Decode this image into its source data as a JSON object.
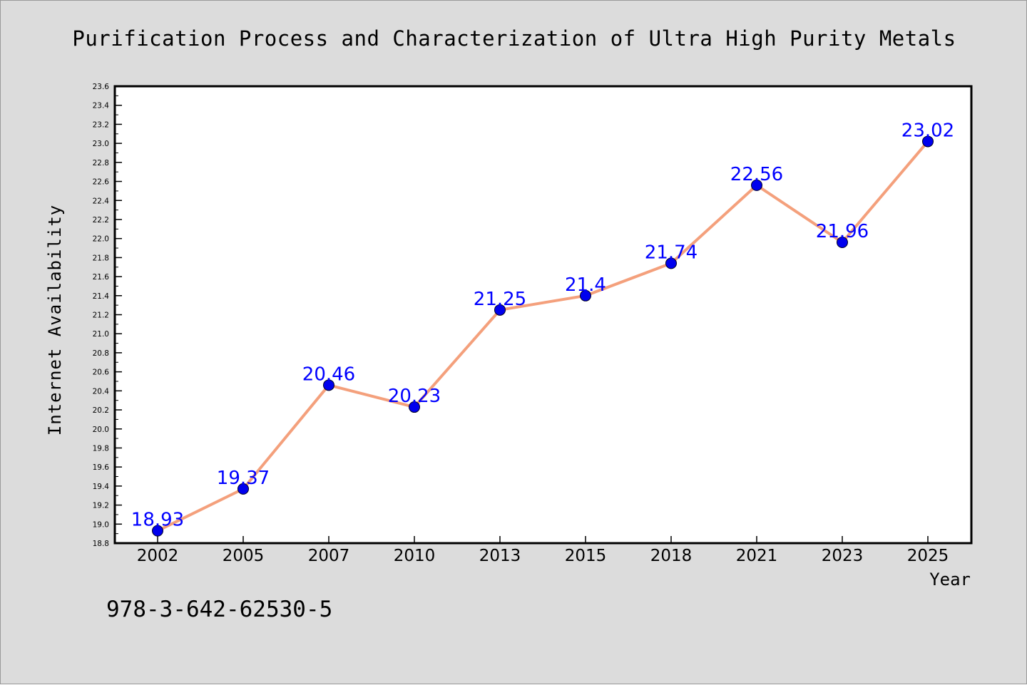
{
  "chart_data": {
    "type": "line",
    "title": "Purification Process and Characterization of Ultra High Purity Metals",
    "xlabel": "Year",
    "ylabel": "Internet Availability",
    "categories": [
      "2002",
      "2005",
      "2007",
      "2010",
      "2013",
      "2015",
      "2018",
      "2021",
      "2023",
      "2025"
    ],
    "series": [
      {
        "values": [
          18.93,
          19.37,
          20.46,
          20.23,
          21.25,
          21.4,
          21.74,
          22.56,
          21.96,
          23.02
        ],
        "labels": [
          "18.93",
          "19.37",
          "20.46",
          "20.23",
          "21.25",
          "21.4",
          "21.74",
          "22.56",
          "21.96",
          "23.02"
        ],
        "line_color": "#f4a07c",
        "marker_color": "#0000ee"
      }
    ],
    "ylim": [
      18.8,
      23.6
    ],
    "yticks": [
      "18.8",
      "19.0",
      "19.2",
      "19.4",
      "19.6",
      "19.8",
      "20.0",
      "20.2",
      "20.4",
      "20.6",
      "20.8",
      "21.0",
      "21.2",
      "21.4",
      "21.6",
      "21.8",
      "22.0",
      "22.2",
      "22.4",
      "22.6",
      "22.8",
      "23.0",
      "23.2",
      "23.4",
      "23.6"
    ],
    "grid": false,
    "data_label_color": "#0000ff"
  },
  "footnote": "978-3-642-62530-5",
  "colors": {
    "figure_background": "#dcdcdc",
    "plot_background": "#ffffff",
    "axis": "#000000"
  }
}
